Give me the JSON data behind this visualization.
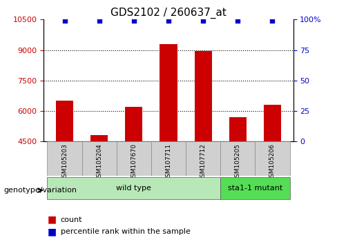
{
  "title": "GDS2102 / 260637_at",
  "samples": [
    "GSM105203",
    "GSM105204",
    "GSM107670",
    "GSM107711",
    "GSM107712",
    "GSM105205",
    "GSM105206"
  ],
  "counts": [
    6500,
    4800,
    6200,
    9300,
    8950,
    5700,
    6300
  ],
  "percentiles": [
    99,
    99,
    99,
    99,
    99,
    99,
    99
  ],
  "ylim_left": [
    4500,
    10500
  ],
  "ylim_right": [
    0,
    100
  ],
  "yticks_left": [
    4500,
    6000,
    7500,
    9000,
    10500
  ],
  "yticks_right": [
    0,
    25,
    50,
    75,
    100
  ],
  "bar_color": "#cc0000",
  "percentile_color": "#0000cc",
  "grid_color": "#000000",
  "background_color": "#ffffff",
  "plot_bg_color": "#ffffff",
  "genotype_groups": [
    {
      "label": "wild type",
      "start": 0,
      "end": 4,
      "color": "#90ee90"
    },
    {
      "label": "sta1-1 mutant",
      "start": 5,
      "end": 6,
      "color": "#00cc00"
    }
  ],
  "genotype_label": "genotype/variation",
  "legend_count": "count",
  "legend_percentile": "percentile rank within the sample",
  "tick_label_color_left": "#cc0000",
  "tick_label_color_right": "#0000cc"
}
